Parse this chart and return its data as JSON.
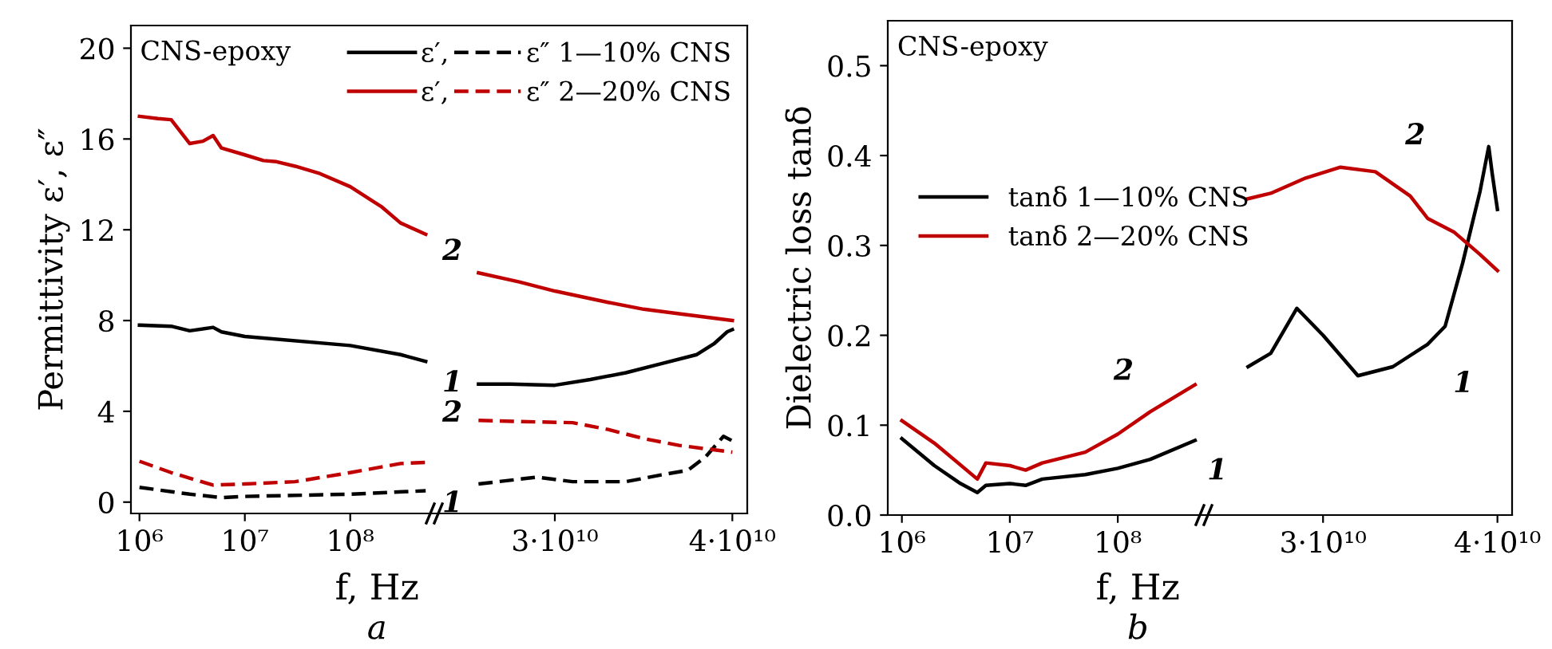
{
  "chart_data": [
    {
      "type": "line",
      "ylabel": "Permittivity ε′, ε″",
      "xlabel": "f, Hz",
      "log": "x",
      "xlim": [
        830000,
        650000000
      ],
      "xticks": [
        {
          "value": 1000000,
          "label": "10⁶"
        },
        {
          "value": 10000000,
          "label": "10⁷"
        },
        {
          "value": 100000000,
          "label": "10⁸"
        }
      ],
      "ylim": [
        -0.5,
        21
      ],
      "yticks": [
        0,
        4,
        8,
        12,
        16,
        20
      ],
      "legend": "top right",
      "grid": false,
      "marker": "none",
      "series": [
        {
          "name": "ε′,",
          "color": "#000000",
          "line_style": "solid",
          "x": [
            1000000,
            2000000,
            3000000,
            5000000,
            6000000,
            10000000,
            100000000,
            300000000,
            520000000
          ],
          "values": [
            7.8,
            7.75,
            7.55,
            7.7,
            7.5,
            7.3,
            6.9,
            6.5,
            6.2
          ]
        },
        {
          "name": "ε′,",
          "color": "#c00000",
          "line_style": "solid",
          "x": [
            1000000,
            1500000,
            2000000,
            3000000,
            4000000,
            5000000,
            6000000,
            10000000,
            15000000,
            20000000,
            30000000,
            50000000,
            100000000,
            200000000,
            300000000,
            520000000
          ],
          "values": [
            17.0,
            16.9,
            16.85,
            15.8,
            15.9,
            16.15,
            15.6,
            15.3,
            15.05,
            15.0,
            14.8,
            14.5,
            13.9,
            13.0,
            12.3,
            11.8
          ]
        },
        {
          "name": "ε″ 1—10% CNS",
          "color": "#000000",
          "line_style": "dashed",
          "x": [
            1000000,
            3000000,
            6000000,
            10000000,
            100000000,
            520000000
          ],
          "values": [
            0.65,
            0.35,
            0.2,
            0.25,
            0.35,
            0.5
          ]
        },
        {
          "name": "ε″ 2—20% CNS",
          "color": "#c00000",
          "line_style": "dashed",
          "x": [
            1000000,
            2000000,
            5000000,
            10000000,
            30000000,
            100000000,
            300000000,
            520000000
          ],
          "values": [
            1.8,
            1.3,
            0.75,
            0.8,
            0.9,
            1.3,
            1.7,
            1.75
          ]
        }
      ],
      "annotations": [
        "CNS-epoxy",
        "a",
        {
          "text": "2",
          "x": 520000000,
          "y": 11.8
        },
        {
          "text": "1",
          "x": 520000000,
          "y": 6.2
        },
        {
          "text": "2",
          "x": 520000000,
          "y": 1.75
        },
        {
          "text": "1",
          "x": 520000000,
          "y": 0.5
        }
      ]
    },
    {
      "type": "line",
      "xlim": [
        23300000000,
        40840000000
      ],
      "xticks": [
        {
          "value": 30000000000,
          "label": "3·10¹⁰"
        },
        {
          "value": 40000000000,
          "label": "4·10¹⁰"
        }
      ],
      "ylim": [
        -0.5,
        21
      ],
      "tick_labels": "x",
      "grid": false,
      "marker": "none",
      "series": [
        {
          "color": "#000000",
          "line_style": "solid",
          "x": [
            25700000000,
            27500000000,
            30000000000,
            32000000000,
            34000000000,
            36000000000,
            38000000000,
            39000000000,
            39700000000,
            40000000000
          ],
          "values": [
            5.2,
            5.2,
            5.15,
            5.4,
            5.7,
            6.1,
            6.5,
            7.0,
            7.5,
            7.6
          ]
        },
        {
          "color": "#c00000",
          "line_style": "solid",
          "x": [
            25700000000,
            28000000000,
            30000000000,
            33000000000,
            35000000000,
            37000000000,
            40000000000
          ],
          "values": [
            10.1,
            9.7,
            9.3,
            8.8,
            8.5,
            8.3,
            8.0
          ]
        },
        {
          "color": "#000000",
          "line_style": "dashed",
          "x": [
            25700000000,
            29000000000,
            31000000000,
            34000000000,
            36000000000,
            37500000000,
            38500000000,
            39500000000,
            40000000000
          ],
          "values": [
            0.8,
            1.1,
            0.9,
            0.9,
            1.2,
            1.4,
            2.0,
            2.9,
            2.7
          ]
        },
        {
          "color": "#c00000",
          "line_style": "dashed",
          "x": [
            25700000000,
            28000000000,
            31000000000,
            33000000000,
            35000000000,
            37000000000,
            40000000000
          ],
          "values": [
            3.6,
            3.55,
            3.5,
            3.2,
            2.8,
            2.5,
            2.2
          ]
        }
      ]
    },
    {
      "type": "line",
      "ylabel": "Dielectric loss tanδ",
      "xlabel": "f, Hz",
      "log": "x",
      "xlim": [
        740000,
        650000000
      ],
      "xticks": [
        {
          "value": 1000000,
          "label": "10⁶"
        },
        {
          "value": 10000000,
          "label": "10⁷"
        },
        {
          "value": 100000000,
          "label": "10⁸"
        }
      ],
      "ylim": [
        0,
        0.55
      ],
      "yticks": [
        {
          "value": 0,
          "label": "0.0"
        },
        0.1,
        0.2,
        0.3,
        0.4,
        0.5
      ],
      "legend": "top",
      "grid": false,
      "marker": "none",
      "series": [
        {
          "name": "tanδ 1—10% CNS",
          "color": "#000000",
          "line_style": "solid",
          "x": [
            1000000,
            2000000,
            3500000,
            5000000,
            6000000,
            10000000,
            14000000,
            20000000,
            50000000,
            100000000,
            200000000,
            520000000
          ],
          "values": [
            0.085,
            0.055,
            0.035,
            0.025,
            0.033,
            0.035,
            0.033,
            0.04,
            0.045,
            0.052,
            0.062,
            0.083
          ]
        },
        {
          "name": "tanδ 2—20% CNS",
          "color": "#c00000",
          "line_style": "solid",
          "x": [
            1000000,
            2000000,
            5000000,
            6000000,
            10000000,
            14000000,
            20000000,
            50000000,
            100000000,
            200000000,
            520000000
          ],
          "values": [
            0.105,
            0.08,
            0.04,
            0.058,
            0.055,
            0.05,
            0.058,
            0.07,
            0.09,
            0.115,
            0.145
          ]
        }
      ],
      "annotations": [
        "CNS-epoxy",
        "b",
        {
          "text": "2",
          "x": 200000000,
          "y": 0.115
        },
        {
          "text": "1",
          "x": 520000000,
          "y": 0.083
        }
      ]
    },
    {
      "type": "line",
      "xlim": [
        23260000000,
        40840000000
      ],
      "xticks": [
        {
          "value": 30000000000,
          "label": "3·10¹⁰"
        },
        {
          "value": 40000000000,
          "label": "4·10¹⁰"
        }
      ],
      "ylim": [
        0,
        0.55
      ],
      "tick_labels": "x",
      "grid": false,
      "marker": "none",
      "series": [
        {
          "color": "#000000",
          "line_style": "solid",
          "x": [
            25700000000,
            27000000000,
            28500000000,
            30000000000,
            32000000000,
            34000000000,
            36000000000,
            37000000000,
            38000000000,
            39000000000,
            39500000000,
            39700000000,
            40000000000
          ],
          "values": [
            0.165,
            0.18,
            0.23,
            0.2,
            0.155,
            0.165,
            0.19,
            0.21,
            0.28,
            0.36,
            0.41,
            0.38,
            0.34
          ]
        },
        {
          "color": "#c00000",
          "line_style": "solid",
          "x": [
            25700000000,
            27000000000,
            29000000000,
            31000000000,
            33000000000,
            35000000000,
            36000000000,
            37500000000,
            39000000000,
            40000000000
          ],
          "values": [
            0.352,
            0.358,
            0.375,
            0.387,
            0.382,
            0.355,
            0.33,
            0.315,
            0.29,
            0.272
          ]
        }
      ],
      "annotations": [
        {
          "text": "2",
          "x": 33000000000,
          "y": 0.382
        },
        {
          "text": "1",
          "x": 36000000000,
          "y": 0.19
        }
      ]
    }
  ]
}
